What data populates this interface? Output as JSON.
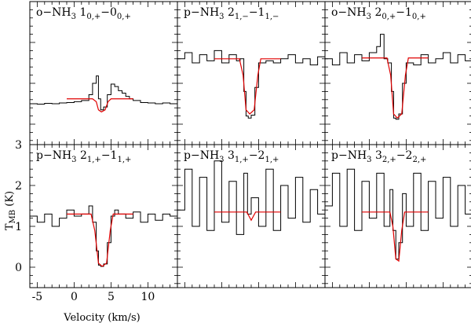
{
  "figure": {
    "xlabel": "Velocity (km/s)",
    "ylabel": "T_MB (K)"
  },
  "chart_data": [
    {
      "type": "line",
      "panel_row": 0,
      "panel_col": 0,
      "title": {
        "prefix": "o−NH",
        "sub1": "3",
        "mid1": " 1",
        "sub2": "0,+",
        "mid2": "−0",
        "sub3": "0,+"
      },
      "xlim": [
        -6,
        14
      ],
      "ylim": [
        -0.5,
        3
      ],
      "series": [
        {
          "role": "observed",
          "color": "#000000",
          "x": [
            -6,
            -5,
            -4,
            -3,
            -2,
            -1,
            0,
            1,
            2,
            2.5,
            3,
            3.3,
            3.6,
            4,
            4.5,
            5,
            5.5,
            6,
            6.5,
            7,
            7.5,
            8,
            9,
            10,
            11,
            12,
            13,
            14
          ],
          "y": [
            0.5,
            0.49,
            0.51,
            0.5,
            0.52,
            0.53,
            0.55,
            0.58,
            0.72,
            1.0,
            1.18,
            0.62,
            0.35,
            0.42,
            0.72,
            0.98,
            0.92,
            0.82,
            0.76,
            0.68,
            0.62,
            0.58,
            0.53,
            0.52,
            0.5,
            0.52,
            0.5,
            0.49
          ]
        },
        {
          "role": "model",
          "color": "#e00000",
          "x": [
            -1,
            2.5,
            3,
            3.3,
            3.7,
            4.2,
            4.6,
            5,
            8
          ],
          "y": [
            0.62,
            0.62,
            0.55,
            0.35,
            0.3,
            0.35,
            0.55,
            0.62,
            0.62
          ]
        }
      ]
    },
    {
      "type": "line",
      "panel_row": 0,
      "panel_col": 1,
      "title": {
        "prefix": "p−NH",
        "sub1": "3",
        "mid1": " 2",
        "sub2": "1,−",
        "mid2": "−1",
        "sub3": "1,−"
      },
      "xlim": [
        -6,
        14
      ],
      "ylim": [
        -0.5,
        3
      ],
      "series": [
        {
          "role": "observed",
          "color": "#000000",
          "x": [
            -6,
            -5,
            -4,
            -3,
            -2,
            -1,
            0,
            1,
            2,
            2.5,
            3,
            3.3,
            3.6,
            4,
            4.5,
            5,
            6,
            7,
            8,
            9,
            10,
            11,
            12,
            13,
            14
          ],
          "y": [
            1.6,
            1.75,
            1.5,
            1.7,
            1.55,
            1.8,
            1.5,
            1.7,
            1.55,
            1.6,
            0.8,
            0.2,
            0.15,
            0.22,
            0.9,
            1.5,
            1.55,
            1.5,
            1.6,
            1.7,
            1.5,
            1.6,
            1.45,
            1.65,
            1.6
          ]
        },
        {
          "role": "model",
          "color": "#e00000",
          "x": [
            -1,
            2.4,
            2.9,
            3.3,
            3.8,
            4.4,
            4.9,
            5.3,
            8
          ],
          "y": [
            1.6,
            1.6,
            1.2,
            0.35,
            0.25,
            0.35,
            1.2,
            1.6,
            1.6
          ]
        }
      ]
    },
    {
      "type": "line",
      "panel_row": 0,
      "panel_col": 2,
      "title": {
        "prefix": "o−NH",
        "sub1": "3",
        "mid1": " 2",
        "sub2": "0,+",
        "mid2": "−1",
        "sub3": "0,+"
      },
      "xlim": [
        -6,
        14
      ],
      "ylim": [
        -0.5,
        3
      ],
      "series": [
        {
          "role": "observed",
          "color": "#000000",
          "x": [
            -6,
            -5,
            -4,
            -3,
            -2,
            -1,
            0,
            1,
            1.5,
            2,
            2.5,
            3,
            3.3,
            3.6,
            4,
            4.5,
            5,
            6,
            7,
            8,
            9,
            10,
            11,
            12,
            13,
            14
          ],
          "y": [
            1.6,
            1.45,
            1.75,
            1.5,
            1.7,
            1.55,
            1.75,
            1.9,
            2.2,
            1.6,
            1.5,
            0.8,
            0.15,
            0.12,
            0.25,
            1.0,
            1.5,
            1.45,
            1.7,
            1.5,
            1.6,
            1.75,
            1.5,
            1.7,
            1.55,
            1.6
          ]
        },
        {
          "role": "model",
          "color": "#e00000",
          "x": [
            -1,
            2.4,
            2.9,
            3.3,
            3.8,
            4.4,
            4.9,
            5.3,
            8
          ],
          "y": [
            1.62,
            1.62,
            1.2,
            0.25,
            0.15,
            0.25,
            1.2,
            1.62,
            1.62
          ]
        }
      ]
    },
    {
      "type": "line",
      "panel_row": 1,
      "panel_col": 0,
      "title": {
        "prefix": "p−NH",
        "sub1": "3",
        "mid1": " 2",
        "sub2": "1,+",
        "mid2": "−1",
        "sub3": "1,+"
      },
      "xlim": [
        -6,
        14
      ],
      "ylim": [
        -0.5,
        3
      ],
      "xticks": [
        -5,
        0,
        5,
        10
      ],
      "yticks": [
        0,
        1,
        2,
        3
      ],
      "series": [
        {
          "role": "observed",
          "color": "#000000",
          "x": [
            -6,
            -5,
            -4,
            -3,
            -2,
            -1,
            0,
            1,
            2,
            2.5,
            3,
            3.3,
            3.6,
            4,
            4.5,
            5,
            5.5,
            6,
            7,
            8,
            9,
            10,
            11,
            12,
            13,
            14
          ],
          "y": [
            1.25,
            1.1,
            1.3,
            1.0,
            1.2,
            1.4,
            1.25,
            1.3,
            1.5,
            1.1,
            0.4,
            0.05,
            0.02,
            0.08,
            0.6,
            1.25,
            1.4,
            1.3,
            1.2,
            1.35,
            1.1,
            1.3,
            1.15,
            1.3,
            1.25,
            1.2
          ]
        },
        {
          "role": "model",
          "color": "#e00000",
          "x": [
            -1,
            2.3,
            2.8,
            3.3,
            3.8,
            4.4,
            4.9,
            5.3,
            8
          ],
          "y": [
            1.3,
            1.3,
            0.9,
            0.1,
            0.02,
            0.1,
            0.9,
            1.3,
            1.3
          ]
        }
      ]
    },
    {
      "type": "line",
      "panel_row": 1,
      "panel_col": 1,
      "title": {
        "prefix": "p−NH",
        "sub1": "3",
        "mid1": " 3",
        "sub2": "1,+",
        "mid2": "−2",
        "sub3": "1,+"
      },
      "xlim": [
        -6,
        14
      ],
      "ylim": [
        -0.5,
        3
      ],
      "series": [
        {
          "role": "observed",
          "color": "#000000",
          "x": [
            -6,
            -5,
            -4,
            -3,
            -2,
            -1,
            0,
            1,
            2,
            3,
            3.5,
            4,
            5,
            6,
            7,
            8,
            9,
            10,
            11,
            12,
            13,
            14
          ],
          "y": [
            1.4,
            2.4,
            1.0,
            2.2,
            0.9,
            2.6,
            1.1,
            2.1,
            0.8,
            2.3,
            1.3,
            1.7,
            1.0,
            2.4,
            0.9,
            2.0,
            1.2,
            2.2,
            1.1,
            1.9,
            1.3,
            1.8
          ]
        },
        {
          "role": "model",
          "color": "#e00000",
          "x": [
            -1,
            3.4,
            3.7,
            4.0,
            4.3,
            4.6,
            8
          ],
          "y": [
            1.35,
            1.35,
            1.25,
            1.15,
            1.25,
            1.35,
            1.35
          ]
        }
      ]
    },
    {
      "type": "line",
      "panel_row": 1,
      "panel_col": 2,
      "title": {
        "prefix": "p−NH",
        "sub1": "3",
        "mid1": " 3",
        "sub2": "2,+",
        "mid2": "−2",
        "sub3": "2,+"
      },
      "xlim": [
        -6,
        14
      ],
      "ylim": [
        -0.5,
        3
      ],
      "series": [
        {
          "role": "observed",
          "color": "#000000",
          "x": [
            -6,
            -5,
            -4,
            -3,
            -2,
            -1,
            0,
            1,
            2,
            2.8,
            3.2,
            3.6,
            4,
            4.5,
            5,
            6,
            7,
            8,
            9,
            10,
            11,
            12,
            13,
            14
          ],
          "y": [
            1.5,
            2.3,
            1.0,
            2.4,
            0.9,
            2.1,
            1.2,
            2.3,
            1.0,
            1.9,
            0.9,
            0.2,
            0.6,
            1.8,
            1.0,
            2.3,
            0.9,
            2.1,
            1.2,
            2.2,
            1.0,
            2.0,
            1.3,
            1.7
          ]
        },
        {
          "role": "model",
          "color": "#e00000",
          "x": [
            -1,
            2.8,
            3.2,
            3.6,
            4.0,
            4.4,
            4.8,
            8
          ],
          "y": [
            1.35,
            1.35,
            1.0,
            0.2,
            0.15,
            0.9,
            1.35,
            1.35
          ]
        }
      ]
    }
  ]
}
